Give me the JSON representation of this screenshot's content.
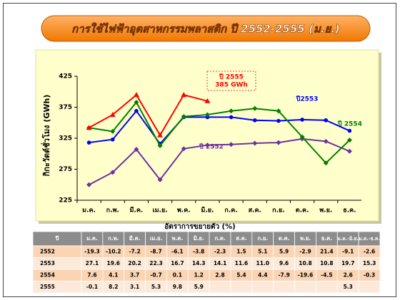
{
  "chart_data": {
    "type": "line",
    "title": "การใช้ไฟฟ้าอุตสาหกรรมพลาสติก ปี 2552-2555 (ม.ย.)",
    "y_label": "กิกะวัตต์ชั่วโมง (GWh)",
    "categories": [
      "ม.ค.",
      "ก.พ.",
      "มี.ค.",
      "เม.ย.",
      "พ.ค.",
      "มิ.ย.",
      "ก.ค.",
      "ส.ค.",
      "ก.ย.",
      "ต.ค.",
      "พ.ย.",
      "ธ.ค."
    ],
    "ylim": [
      225,
      425
    ],
    "yticks": [
      225,
      275,
      325,
      375,
      425
    ],
    "grid": false,
    "series": [
      {
        "name": "2552",
        "color": "#7030a0",
        "marker": "diamond",
        "values": [
          250,
          270,
          307,
          258,
          308,
          314,
          315,
          317,
          318,
          324,
          320,
          304
        ]
      },
      {
        "name": "2553",
        "color": "#0000ff",
        "marker": "circle",
        "values": [
          318,
          323,
          369,
          316,
          359,
          359,
          359,
          354,
          353,
          355,
          354,
          337
        ]
      },
      {
        "name": "2554",
        "color": "#008000",
        "marker": "diamond",
        "values": [
          342,
          336,
          383,
          313,
          360,
          363,
          369,
          373,
          369,
          327,
          285,
          322
        ]
      },
      {
        "name": "2555",
        "color": "#ff0000",
        "marker": "triangle",
        "values": [
          342,
          363,
          395,
          330,
          395,
          385,
          null,
          null,
          null,
          null,
          null,
          null
        ]
      }
    ],
    "annotations": [
      {
        "lines": [
          "ปี 2555",
          "385 GWh"
        ],
        "color": "#ff0000",
        "boxed": true
      },
      {
        "lines": [
          "ปี2553"
        ],
        "color": "#0000ff",
        "boxed": false
      },
      {
        "lines": [
          "ปี 2554"
        ],
        "color": "#008000",
        "boxed": false
      },
      {
        "lines": [
          "ปี 2552"
        ],
        "color": "#7030a0",
        "boxed": false
      }
    ]
  },
  "table": {
    "title": "อัตราการขยายตัว (%)",
    "header": [
      "ปี",
      "ม.ค.",
      "ก.พ.",
      "มี.ค.",
      "เม.ย.",
      "พ.ค.",
      "มิ.ย.",
      "ก.ค.",
      "ส.ค.",
      "ก.ย.",
      "ต.ค.",
      "พ.ย.",
      "ธ.ค.",
      "ม.ค.-มิ.ย.",
      "ม.ค.-ธ.ค."
    ],
    "rows": [
      [
        "2552",
        "-19.3",
        "-10.2",
        "-7.2",
        "-8.7",
        "-6.1",
        "-3.8",
        "-2.3",
        "1.5",
        "5.1",
        "5.9",
        "-2.9",
        "21.4",
        "-9.1",
        "-2.6"
      ],
      [
        "2553",
        "27.1",
        "19.6",
        "20.2",
        "22.3",
        "16.7",
        "14.3",
        "14.1",
        "11.6",
        "11.0",
        "9.6",
        "10.8",
        "10.8",
        "19.7",
        "15.3"
      ],
      [
        "2554",
        "7.6",
        "4.1",
        "3.7",
        "-0.7",
        "0.1",
        "1.2",
        "2.8",
        "5.4",
        "4.4",
        "-7.9",
        "-19.6",
        "-4.5",
        "2.6",
        "-0.3"
      ],
      [
        "2555",
        "-0.1",
        "8.2",
        "3.1",
        "5.3",
        "9.8",
        "5.9",
        null,
        null,
        null,
        null,
        null,
        null,
        "5.3",
        null
      ]
    ]
  }
}
